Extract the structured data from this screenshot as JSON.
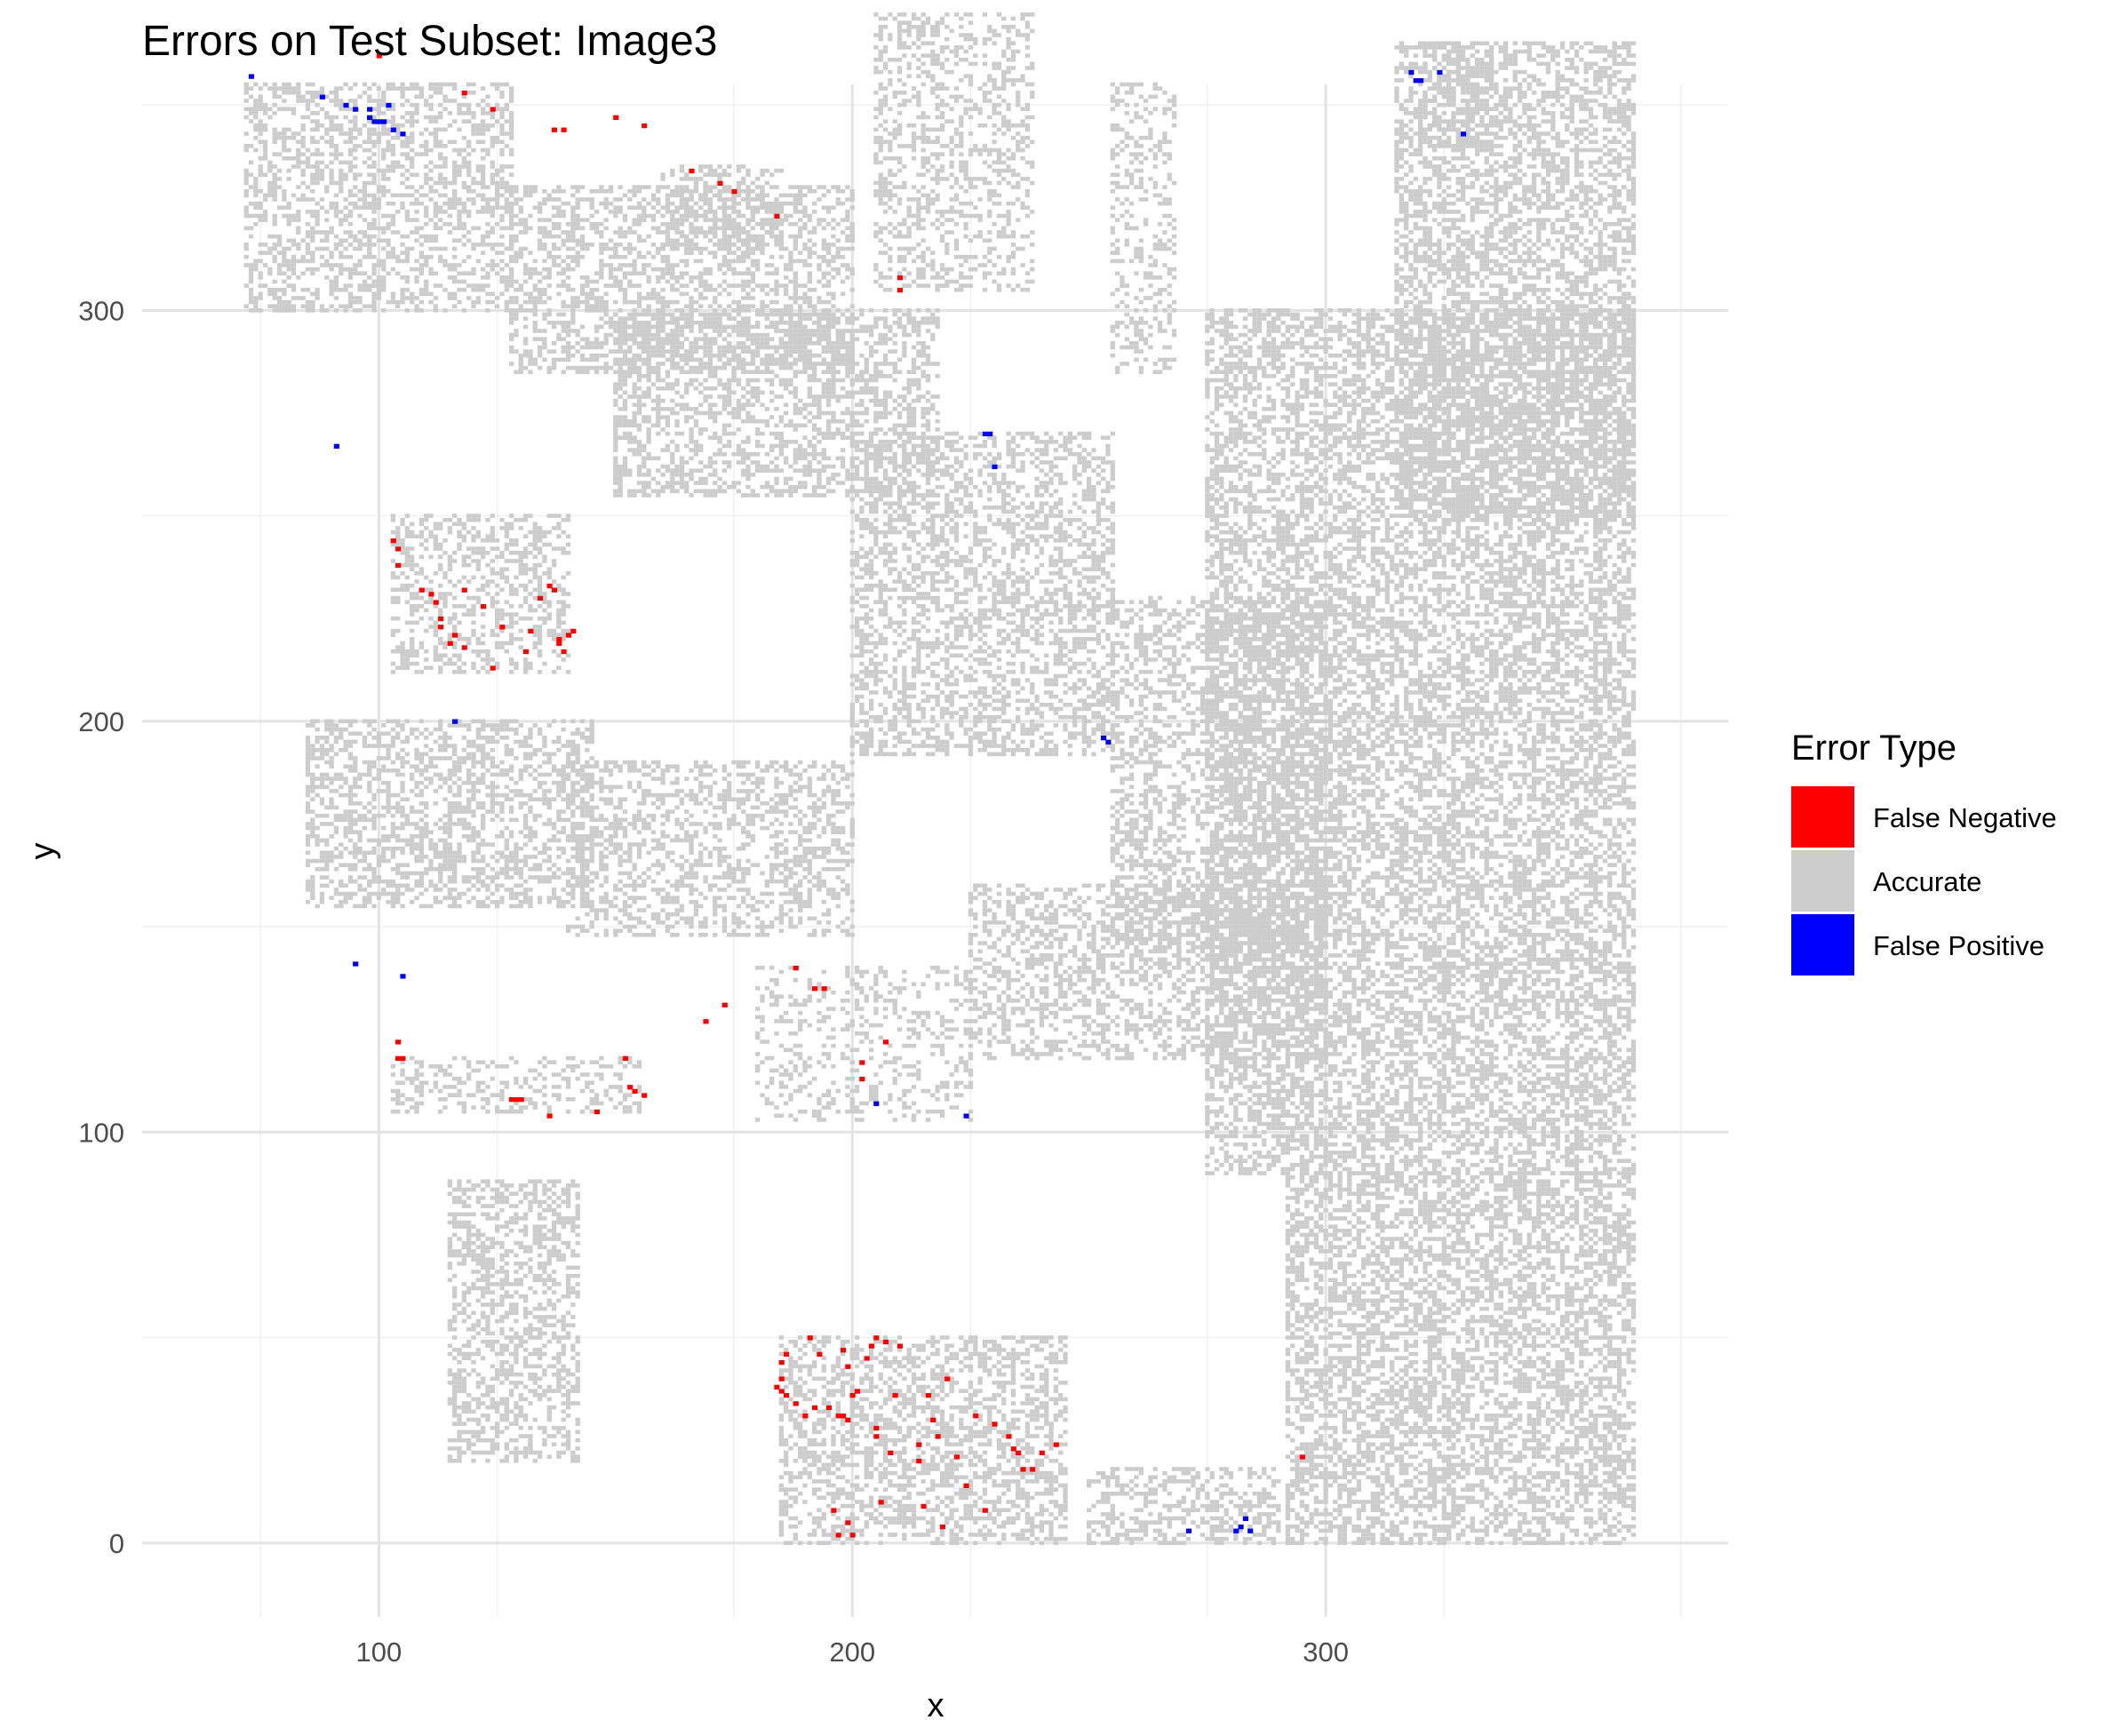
{
  "chart_data": {
    "type": "heatmap",
    "title": "Errors on Test Subset: Image3",
    "xlabel": "x",
    "ylabel": "y",
    "xlim": [
      50,
      385
    ],
    "ylim": [
      -18,
      355
    ],
    "x_ticks": [
      100,
      200,
      300
    ],
    "y_ticks": [
      0,
      100,
      200,
      300
    ],
    "grid": true,
    "legend": {
      "title": "Error Type",
      "placement": "right",
      "entries": [
        {
          "label": "False Negative",
          "color": "#ff0000"
        },
        {
          "label": "Accurate",
          "color": "#cccccc"
        },
        {
          "label": "False Positive",
          "color": "#0000ff"
        }
      ]
    },
    "accurate_regions": [
      {
        "x": [
          72,
          128
        ],
        "y": [
          300,
          355
        ],
        "density": 0.45
      },
      {
        "x": [
          128,
          200
        ],
        "y": [
          285,
          330
        ],
        "density": 0.45
      },
      {
        "x": [
          150,
          218
        ],
        "y": [
          255,
          300
        ],
        "density": 0.45
      },
      {
        "x": [
          200,
          255
        ],
        "y": [
          192,
          270
        ],
        "density": 0.45
      },
      {
        "x": [
          103,
          140
        ],
        "y": [
          212,
          250
        ],
        "density": 0.4
      },
      {
        "x": [
          85,
          145
        ],
        "y": [
          155,
          200
        ],
        "density": 0.45
      },
      {
        "x": [
          140,
          200
        ],
        "y": [
          148,
          190
        ],
        "density": 0.4
      },
      {
        "x": [
          103,
          155
        ],
        "y": [
          105,
          118
        ],
        "density": 0.3
      },
      {
        "x": [
          180,
          225
        ],
        "y": [
          103,
          140
        ],
        "density": 0.25
      },
      {
        "x": [
          225,
          300
        ],
        "y": [
          118,
          160
        ],
        "density": 0.4
      },
      {
        "x": [
          255,
          300
        ],
        "y": [
          140,
          230
        ],
        "density": 0.4
      },
      {
        "x": [
          275,
          365
        ],
        "y": [
          90,
          300
        ],
        "density": 0.5
      },
      {
        "x": [
          315,
          365
        ],
        "y": [
          250,
          365
        ],
        "density": 0.5
      },
      {
        "x": [
          292,
          365
        ],
        "y": [
          0,
          90
        ],
        "density": 0.5
      },
      {
        "x": [
          115,
          142
        ],
        "y": [
          20,
          88
        ],
        "density": 0.45
      },
      {
        "x": [
          185,
          245
        ],
        "y": [
          0,
          50
        ],
        "density": 0.45
      },
      {
        "x": [
          250,
          290
        ],
        "y": [
          0,
          18
        ],
        "density": 0.4
      },
      {
        "x": [
          205,
          238
        ],
        "y": [
          305,
          372
        ],
        "density": 0.35
      },
      {
        "x": [
          160,
          185
        ],
        "y": [
          315,
          335
        ],
        "density": 0.35
      },
      {
        "x": [
          255,
          268
        ],
        "y": [
          285,
          355
        ],
        "density": 0.3
      },
      {
        "x": [
          320,
          335
        ],
        "y": [
          340,
          365
        ],
        "density": 0.35
      }
    ],
    "false_negative_points": [
      [
        100,
        362
      ],
      [
        118,
        353
      ],
      [
        124,
        349
      ],
      [
        137,
        344
      ],
      [
        139,
        344
      ],
      [
        150,
        347
      ],
      [
        156,
        345
      ],
      [
        166,
        334
      ],
      [
        172,
        331
      ],
      [
        175,
        329
      ],
      [
        184,
        323
      ],
      [
        210,
        308
      ],
      [
        210,
        305
      ],
      [
        103,
        244
      ],
      [
        104,
        242
      ],
      [
        104,
        238
      ],
      [
        109,
        232
      ],
      [
        111,
        231
      ],
      [
        112,
        229
      ],
      [
        113,
        225
      ],
      [
        113,
        223
      ],
      [
        115,
        219
      ],
      [
        116,
        221
      ],
      [
        118,
        218
      ],
      [
        118,
        232
      ],
      [
        122,
        228
      ],
      [
        124,
        213
      ],
      [
        126,
        223
      ],
      [
        131,
        217
      ],
      [
        132,
        222
      ],
      [
        134,
        230
      ],
      [
        136,
        233
      ],
      [
        137,
        232
      ],
      [
        138,
        220
      ],
      [
        138,
        219
      ],
      [
        140,
        221
      ],
      [
        141,
        222
      ],
      [
        139,
        217
      ],
      [
        104,
        122
      ],
      [
        104,
        118
      ],
      [
        105,
        118
      ],
      [
        128,
        108
      ],
      [
        129,
        108
      ],
      [
        130,
        108
      ],
      [
        136,
        104
      ],
      [
        146,
        105
      ],
      [
        152,
        118
      ],
      [
        153,
        111
      ],
      [
        154,
        110
      ],
      [
        156,
        109
      ],
      [
        169,
        127
      ],
      [
        173,
        131
      ],
      [
        188,
        140
      ],
      [
        192,
        135
      ],
      [
        194,
        135
      ],
      [
        202,
        117
      ],
      [
        202,
        113
      ],
      [
        207,
        122
      ],
      [
        184,
        38
      ],
      [
        185,
        40
      ],
      [
        185,
        37
      ],
      [
        185,
        44
      ],
      [
        186,
        36
      ],
      [
        186,
        46
      ],
      [
        188,
        34
      ],
      [
        190,
        31
      ],
      [
        191,
        50
      ],
      [
        192,
        33
      ],
      [
        193,
        46
      ],
      [
        195,
        33
      ],
      [
        196,
        8
      ],
      [
        197,
        31
      ],
      [
        198,
        31
      ],
      [
        198,
        47
      ],
      [
        199,
        30
      ],
      [
        199,
        43
      ],
      [
        200,
        36
      ],
      [
        201,
        37
      ],
      [
        203,
        45
      ],
      [
        204,
        48
      ],
      [
        205,
        50
      ],
      [
        205,
        28
      ],
      [
        205,
        26
      ],
      [
        206,
        10
      ],
      [
        207,
        49
      ],
      [
        208,
        22
      ],
      [
        209,
        36
      ],
      [
        210,
        48
      ],
      [
        214,
        20
      ],
      [
        214,
        24
      ],
      [
        215,
        9
      ],
      [
        216,
        36
      ],
      [
        217,
        30
      ],
      [
        218,
        26
      ],
      [
        219,
        4
      ],
      [
        220,
        40
      ],
      [
        222,
        21
      ],
      [
        224,
        14
      ],
      [
        226,
        31
      ],
      [
        228,
        8
      ],
      [
        230,
        29
      ],
      [
        233,
        26
      ],
      [
        234,
        23
      ],
      [
        235,
        22
      ],
      [
        236,
        18
      ],
      [
        238,
        18
      ],
      [
        240,
        22
      ],
      [
        243,
        24
      ],
      [
        197,
        2
      ],
      [
        199,
        5
      ],
      [
        200,
        2
      ],
      [
        295,
        21
      ]
    ],
    "false_positive_points": [
      [
        73,
        357
      ],
      [
        88,
        352
      ],
      [
        93,
        350
      ],
      [
        95,
        349
      ],
      [
        98,
        347
      ],
      [
        98,
        349
      ],
      [
        99,
        346
      ],
      [
        100,
        346
      ],
      [
        101,
        346
      ],
      [
        103,
        344
      ],
      [
        105,
        343
      ],
      [
        102,
        350
      ],
      [
        91,
        267
      ],
      [
        228,
        270
      ],
      [
        229,
        270
      ],
      [
        230,
        262
      ],
      [
        253,
        196
      ],
      [
        254,
        195
      ],
      [
        116,
        200
      ],
      [
        95,
        141
      ],
      [
        105,
        138
      ],
      [
        205,
        107
      ],
      [
        224,
        104
      ],
      [
        318,
        358
      ],
      [
        319,
        356
      ],
      [
        320,
        356
      ],
      [
        324,
        358
      ],
      [
        329,
        343
      ],
      [
        271,
        3
      ],
      [
        281,
        3
      ],
      [
        282,
        4
      ],
      [
        283,
        6
      ],
      [
        284,
        3
      ]
    ]
  }
}
